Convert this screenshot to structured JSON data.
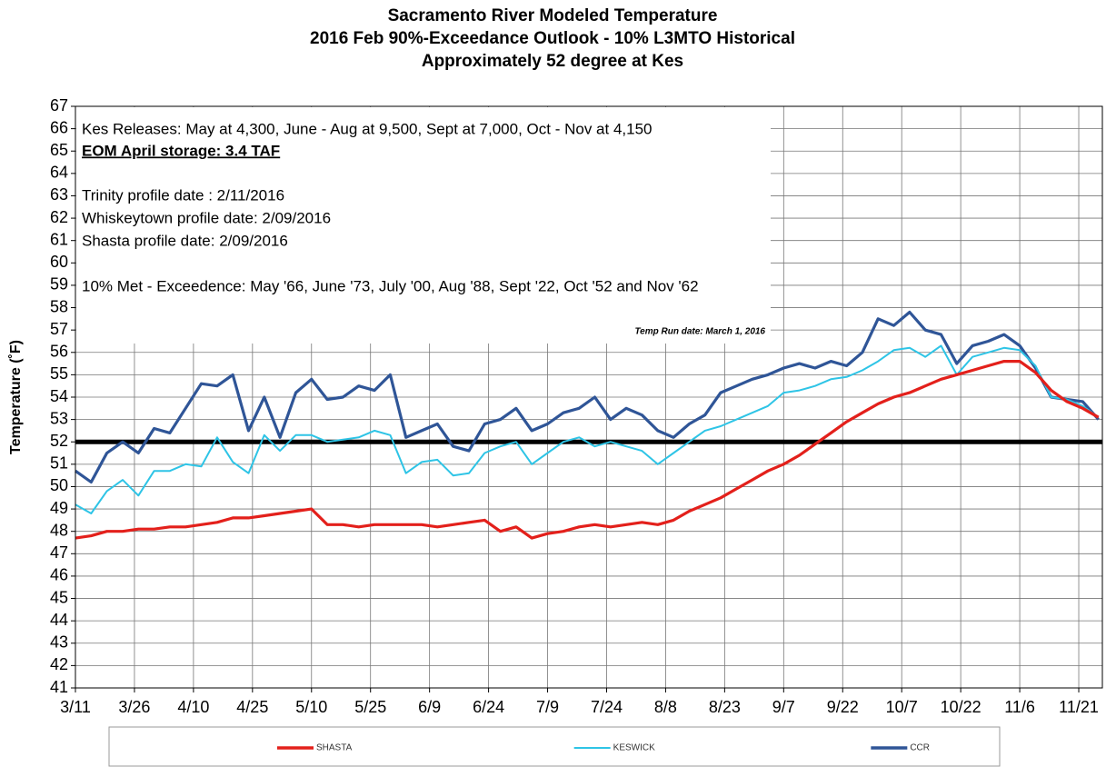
{
  "chart_data": {
    "type": "line",
    "title_lines": [
      "Sacramento River Modeled Temperature",
      "2016 Feb 90%-Exceedance Outlook - 10% L3MTO Historical",
      "Approximately 52 degree at Kes"
    ],
    "y_label": "Temperature (˚F)",
    "annotations": [
      "Kes Releases: May at 4,300, June - Aug  at 9,500, Sept at 7,000, Oct - Nov at 4,150",
      "EOM April storage: 3.4 TAF",
      "Trinity profile date : 2/11/2016",
      "Whiskeytown profile date: 2/09/2016",
      "Shasta profile date: 2/09/2016",
      "10% Met - Exceedence: May '66, June  '73, July '00, Aug  '88, Sept '22, Oct '52 and Nov '62",
      "Temp Run date: March 1, 2016"
    ],
    "x": [
      0,
      4,
      8,
      12,
      16,
      20,
      24,
      28,
      32,
      36,
      40,
      44,
      48,
      52,
      56,
      60,
      64,
      68,
      72,
      76,
      80,
      84,
      88,
      92,
      96,
      100,
      104,
      108,
      112,
      116,
      120,
      124,
      128,
      132,
      136,
      140,
      144,
      148,
      152,
      156,
      160,
      164,
      168,
      172,
      176,
      180,
      184,
      188,
      192,
      196,
      200,
      204,
      208,
      212,
      216,
      220,
      224,
      228,
      232,
      236,
      240,
      244,
      248,
      252,
      256,
      260
    ],
    "xlim": [
      0,
      261
    ],
    "xticks": [
      {
        "value": 0,
        "label": "3/11"
      },
      {
        "value": 15,
        "label": "3/26"
      },
      {
        "value": 30,
        "label": "4/10"
      },
      {
        "value": 45,
        "label": "4/25"
      },
      {
        "value": 60,
        "label": "5/10"
      },
      {
        "value": 75,
        "label": "5/25"
      },
      {
        "value": 90,
        "label": "6/9"
      },
      {
        "value": 105,
        "label": "6/24"
      },
      {
        "value": 120,
        "label": "7/9"
      },
      {
        "value": 135,
        "label": "7/24"
      },
      {
        "value": 150,
        "label": "8/8"
      },
      {
        "value": 165,
        "label": "8/23"
      },
      {
        "value": 180,
        "label": "9/7"
      },
      {
        "value": 195,
        "label": "9/22"
      },
      {
        "value": 210,
        "label": "10/7"
      },
      {
        "value": 225,
        "label": "10/22"
      },
      {
        "value": 240,
        "label": "11/6"
      },
      {
        "value": 255,
        "label": "11/21"
      }
    ],
    "ylim": [
      41,
      67
    ],
    "yticks": [
      41,
      42,
      43,
      44,
      45,
      46,
      47,
      48,
      49,
      50,
      51,
      52,
      53,
      54,
      55,
      56,
      57,
      58,
      59,
      60,
      61,
      62,
      63,
      64,
      65,
      66,
      67
    ],
    "grid": true,
    "reference_line": 52,
    "legend": "bottom",
    "series": [
      {
        "name": "SHASTA",
        "color": "#e3201b",
        "values": [
          47.7,
          47.8,
          48.0,
          48.0,
          48.1,
          48.1,
          48.2,
          48.2,
          48.3,
          48.4,
          48.6,
          48.6,
          48.7,
          48.8,
          48.9,
          49.0,
          48.3,
          48.3,
          48.2,
          48.3,
          48.3,
          48.3,
          48.3,
          48.2,
          48.3,
          48.4,
          48.5,
          48.0,
          48.2,
          47.7,
          47.9,
          48.0,
          48.2,
          48.3,
          48.2,
          48.3,
          48.4,
          48.3,
          48.5,
          48.9,
          49.2,
          49.5,
          49.9,
          50.3,
          50.7,
          51.0,
          51.4,
          51.9,
          52.4,
          52.9,
          53.3,
          53.7,
          54.0,
          54.2,
          54.5,
          54.8,
          55.0,
          55.2,
          55.4,
          55.6,
          55.6,
          55.1,
          54.3,
          53.8,
          53.5,
          53.1
        ]
      },
      {
        "name": "KESWICK",
        "color": "#2ec4e6",
        "values": [
          49.2,
          48.8,
          49.8,
          50.3,
          49.6,
          50.7,
          50.7,
          51.0,
          50.9,
          52.2,
          51.1,
          50.6,
          52.3,
          51.6,
          52.3,
          52.3,
          52.0,
          52.1,
          52.2,
          52.5,
          52.3,
          50.6,
          51.1,
          51.2,
          50.5,
          50.6,
          51.5,
          51.8,
          52.0,
          51.0,
          51.5,
          52.0,
          52.2,
          51.8,
          52.0,
          51.8,
          51.6,
          51.0,
          51.5,
          52.0,
          52.5,
          52.7,
          53.0,
          53.3,
          53.6,
          54.2,
          54.3,
          54.5,
          54.8,
          54.9,
          55.2,
          55.6,
          56.1,
          56.2,
          55.8,
          56.3,
          55.0,
          55.8,
          56.0,
          56.2,
          56.1,
          55.4,
          54.0,
          53.9,
          53.6,
          53.1
        ]
      },
      {
        "name": "CCR",
        "color": "#2f5597",
        "values": [
          50.7,
          50.2,
          51.5,
          52.0,
          51.5,
          52.6,
          52.4,
          53.5,
          54.6,
          54.5,
          55.0,
          52.5,
          54.0,
          52.2,
          54.2,
          54.8,
          53.9,
          54.0,
          54.5,
          54.3,
          55.0,
          52.2,
          52.5,
          52.8,
          51.8,
          51.6,
          52.8,
          53.0,
          53.5,
          52.5,
          52.8,
          53.3,
          53.5,
          54.0,
          53.0,
          53.5,
          53.2,
          52.5,
          52.2,
          52.8,
          53.2,
          54.2,
          54.5,
          54.8,
          55.0,
          55.3,
          55.5,
          55.3,
          55.6,
          55.4,
          56.0,
          57.5,
          57.2,
          57.8,
          57.0,
          56.8,
          55.5,
          56.3,
          56.5,
          56.8,
          56.3,
          55.3,
          54.0,
          53.9,
          53.8,
          53.0
        ]
      }
    ]
  }
}
